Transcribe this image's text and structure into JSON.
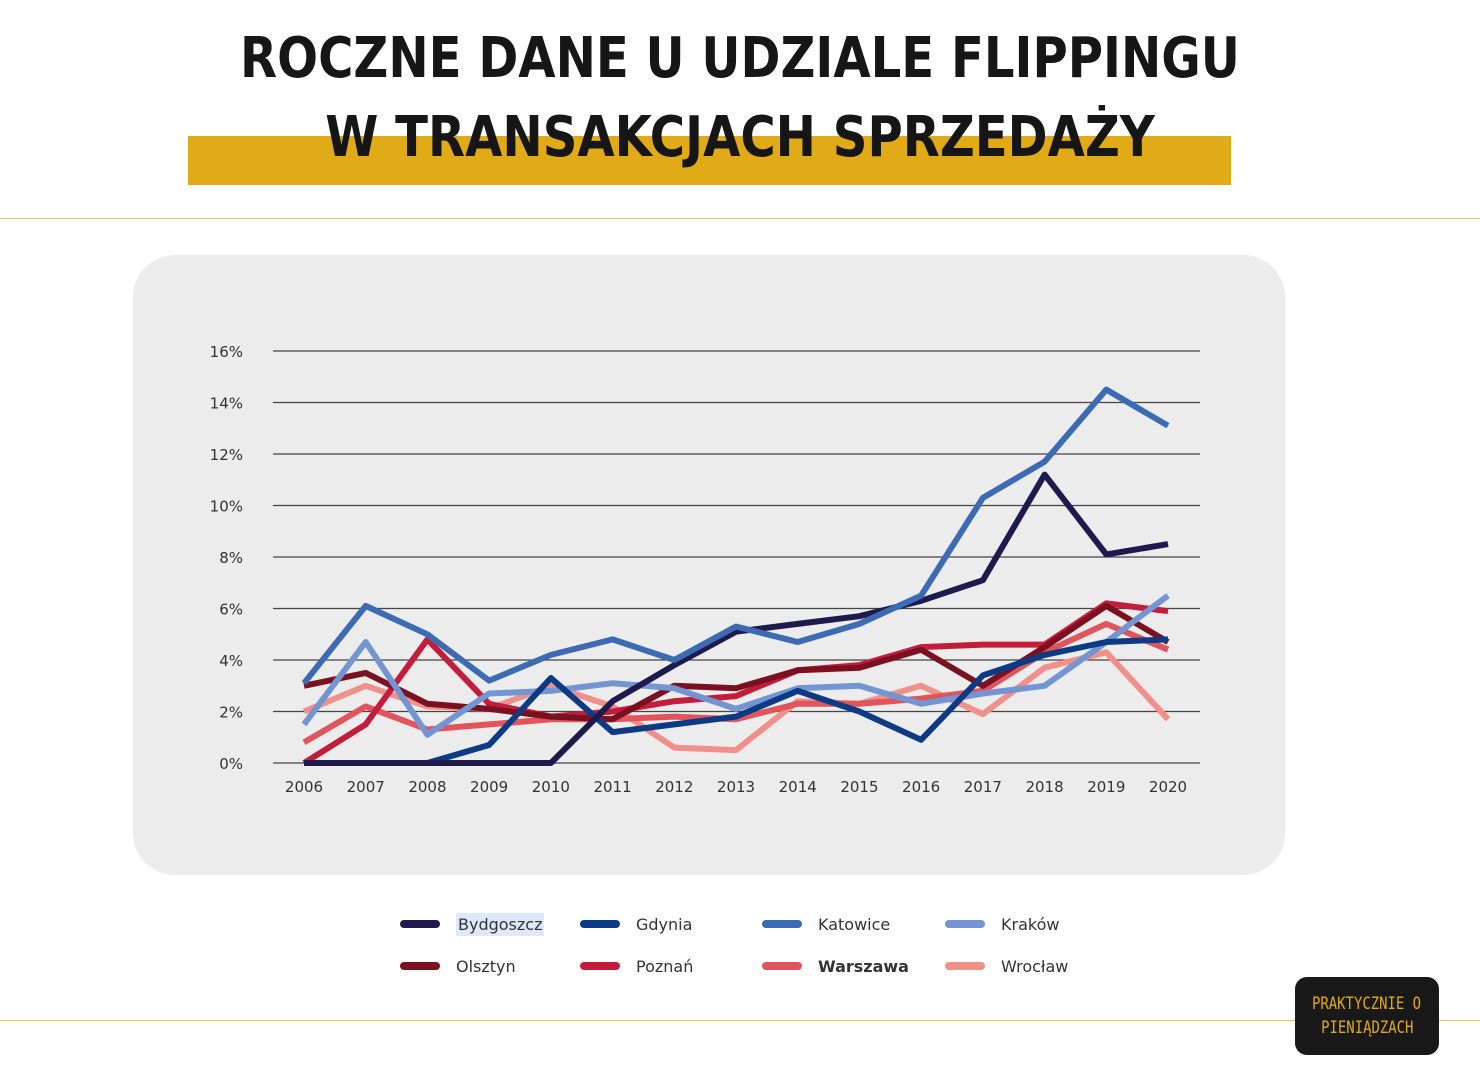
{
  "title": {
    "line1": "ROCZNE DANE U UDZIALE FLIPPINGU",
    "line2": "W TRANSAKCJACH SPRZEDAŻY"
  },
  "brand": {
    "line1": "PRAKTYCZNIE O",
    "line2": "PIENIĄDZACH"
  },
  "colors": {
    "accent": "#e1aa17",
    "panel": "#ececec",
    "gridline": "#444444"
  },
  "chart_data": {
    "type": "line",
    "x": [
      "2006",
      "2007",
      "2008",
      "2009",
      "2010",
      "2011",
      "2012",
      "2013",
      "2014",
      "2015",
      "2016",
      "2017",
      "2018",
      "2019",
      "2020"
    ],
    "ylim": [
      0,
      16
    ],
    "yticks": [
      0,
      2,
      4,
      6,
      8,
      10,
      12,
      14,
      16
    ],
    "ytick_labels": [
      "0%",
      "2%",
      "4%",
      "6%",
      "8%",
      "10%",
      "12%",
      "14%",
      "16%"
    ],
    "grid": "horizontal",
    "legend_position": "bottom",
    "series": [
      {
        "name": "Bydgoszcz",
        "color": "#1e1a4e",
        "values": [
          0,
          0,
          0,
          0,
          0,
          2.4,
          3.8,
          5.1,
          5.4,
          5.7,
          6.3,
          7.1,
          11.2,
          8.1,
          8.5
        ]
      },
      {
        "name": "Gdynia",
        "color": "#0d3a85",
        "values": [
          0,
          0,
          0,
          0.7,
          3.3,
          1.2,
          1.5,
          1.8,
          2.8,
          2.0,
          0.9,
          3.4,
          4.2,
          4.7,
          4.8
        ]
      },
      {
        "name": "Katowice",
        "color": "#3d6bb3",
        "values": [
          3.1,
          6.1,
          5.0,
          3.2,
          4.2,
          4.8,
          4.0,
          5.3,
          4.7,
          5.4,
          6.5,
          10.3,
          11.7,
          14.5,
          13.1
        ]
      },
      {
        "name": "Kraków",
        "color": "#7395d1",
        "values": [
          1.5,
          4.7,
          1.1,
          2.7,
          2.8,
          3.1,
          2.9,
          2.1,
          2.9,
          3.0,
          2.3,
          2.7,
          3.0,
          4.7,
          6.5
        ]
      },
      {
        "name": "Olsztyn",
        "color": "#7a1020",
        "values": [
          3.0,
          3.5,
          2.3,
          2.1,
          1.8,
          1.7,
          3.0,
          2.9,
          3.6,
          3.7,
          4.4,
          3.0,
          4.5,
          6.1,
          4.7
        ]
      },
      {
        "name": "Poznań",
        "color": "#c31d3c",
        "values": [
          0,
          1.5,
          4.8,
          2.3,
          1.8,
          2.0,
          2.4,
          2.6,
          3.6,
          3.8,
          4.5,
          4.6,
          4.6,
          6.2,
          5.9
        ]
      },
      {
        "name": "Warszawa",
        "color": "#e0555c",
        "values": [
          0.8,
          2.2,
          1.3,
          1.5,
          1.7,
          1.7,
          1.8,
          1.7,
          2.3,
          2.3,
          2.5,
          2.8,
          4.3,
          5.4,
          4.4
        ]
      },
      {
        "name": "Wrocław",
        "color": "#f0908b",
        "values": [
          2.0,
          3.0,
          2.2,
          2.1,
          3.0,
          2.2,
          0.6,
          0.5,
          2.4,
          2.3,
          3.0,
          1.9,
          3.7,
          4.3,
          1.7
        ]
      }
    ]
  }
}
